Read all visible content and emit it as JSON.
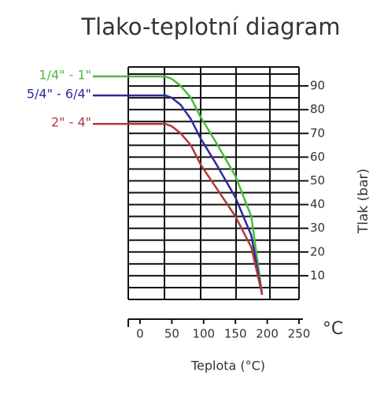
{
  "chart_data": {
    "type": "line",
    "title": "Tlako-teplotní diagram",
    "xlabel": "Teplota (°C)",
    "x_unit": "°C",
    "ylabel": "Tlak (bar)",
    "x": [
      -18,
      40,
      50,
      64,
      80,
      95,
      120,
      150,
      175,
      192
    ],
    "series": [
      {
        "name": "1/4\" - 1\"",
        "color": "#4cbb3a",
        "values": [
          94,
          94,
          93,
          90,
          85,
          77,
          66,
          52,
          35,
          2
        ]
      },
      {
        "name": "5/4\" - 6/4\"",
        "color": "#2b2b9e",
        "values": [
          86,
          86,
          85,
          82,
          76,
          68,
          57,
          43,
          27,
          2
        ]
      },
      {
        "name": "2\" - 4\"",
        "color": "#b03a3a",
        "values": [
          74,
          74,
          73,
          70,
          65,
          57,
          47,
          35,
          22,
          2
        ]
      }
    ],
    "xlim": [
      -18.5,
      250
    ],
    "xticks": [
      0,
      50,
      100,
      150,
      200,
      250
    ],
    "ylim": [
      0,
      98
    ],
    "yticks": [
      10,
      20,
      30,
      40,
      50,
      60,
      70,
      80,
      90
    ],
    "grid": true
  }
}
